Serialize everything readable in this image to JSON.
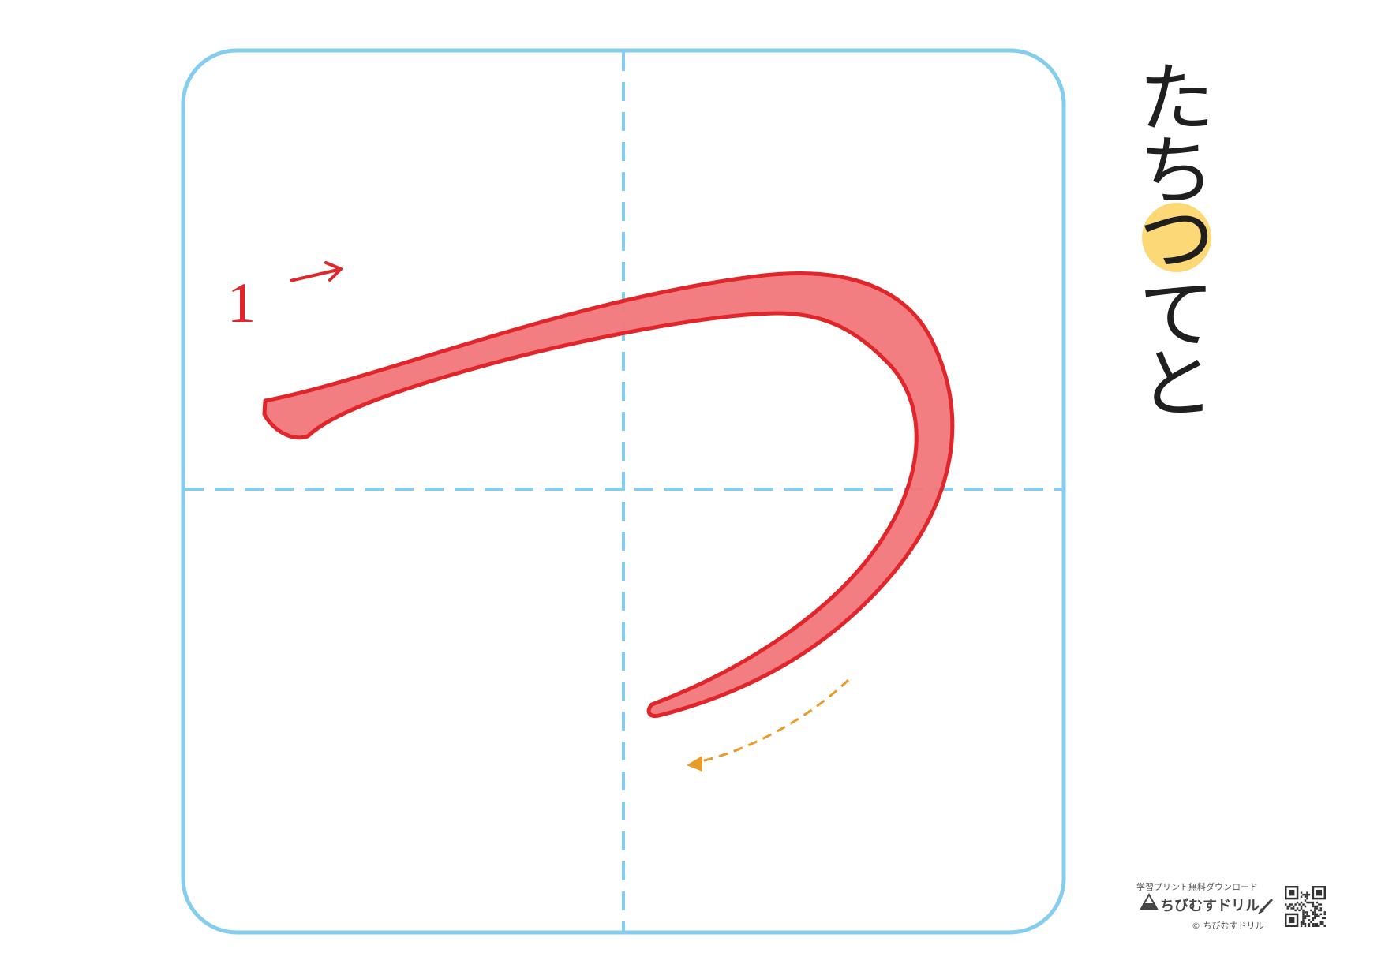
{
  "row_kana": [
    "た",
    "ち",
    "つ",
    "て",
    "と"
  ],
  "highlighted_index": 2,
  "stroke_number": "1",
  "footer": {
    "tagline": "学習プリント無料ダウンロード",
    "brand": "ちびむすドリル",
    "copyright": "© ちびむすドリル"
  },
  "colors": {
    "grid_border": "#85cdee",
    "guide_line": "#85cdee",
    "stroke_outline": "#e1262b",
    "stroke_fill": "#f2777a",
    "direction_arrow": "#e1262b",
    "trail_arrow": "#e89a2a",
    "highlight_circle": "#fcd877"
  },
  "icons": {
    "brand_logo": "onigiri-mascot-icon",
    "pencil": "pencil-icon",
    "qr": "qr-code-icon"
  }
}
